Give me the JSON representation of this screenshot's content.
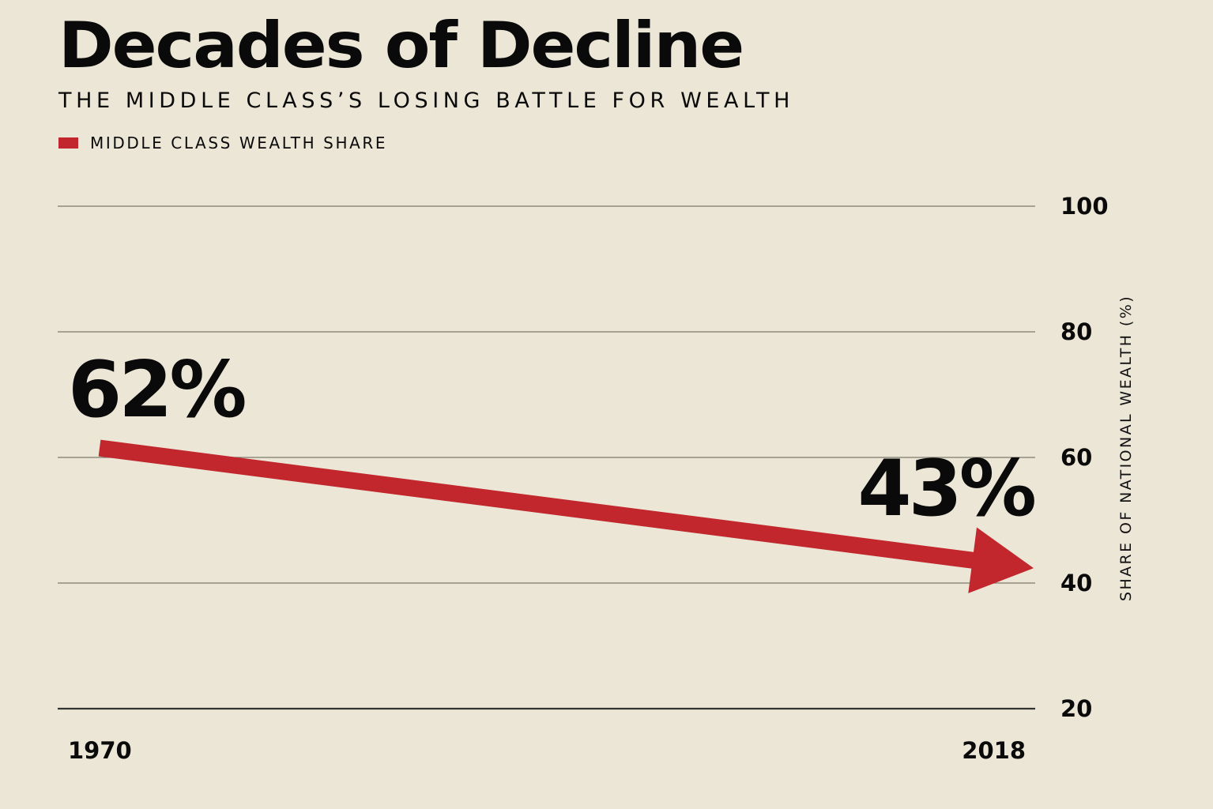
{
  "header": {
    "title": "Decades of Decline",
    "subtitle": "THE MIDDLE CLASS’S LOSING BATTLE FOR WEALTH"
  },
  "colors": {
    "background": "#ece6d6",
    "accent": "#c1272d",
    "gridline": "#7d7a6e",
    "baseline": "#333333",
    "text": "#0a0a0a"
  },
  "chart_data": {
    "type": "line",
    "title": "Decades of Decline",
    "subtitle": "THE MIDDLE CLASS’S LOSING BATTLE FOR WEALTH",
    "xlabel": "",
    "ylabel": "SHARE OF NATIONAL WEALTH (%)",
    "x": [
      1970,
      2018
    ],
    "x_tick_labels": [
      "1970",
      "2018"
    ],
    "series": [
      {
        "name": "MIDDLE CLASS WEALTH SHARE",
        "values": [
          62,
          43
        ],
        "color": "#c1272d",
        "style": "arrow"
      }
    ],
    "annotations": [
      {
        "x": 1970,
        "text": "62%"
      },
      {
        "x": 2018,
        "text": "43%"
      }
    ],
    "ylim": [
      20,
      100
    ],
    "y_ticks": [
      100,
      80,
      60,
      40,
      20
    ],
    "y_axis_side": "right",
    "grid": true,
    "legend_position": "top-left"
  }
}
